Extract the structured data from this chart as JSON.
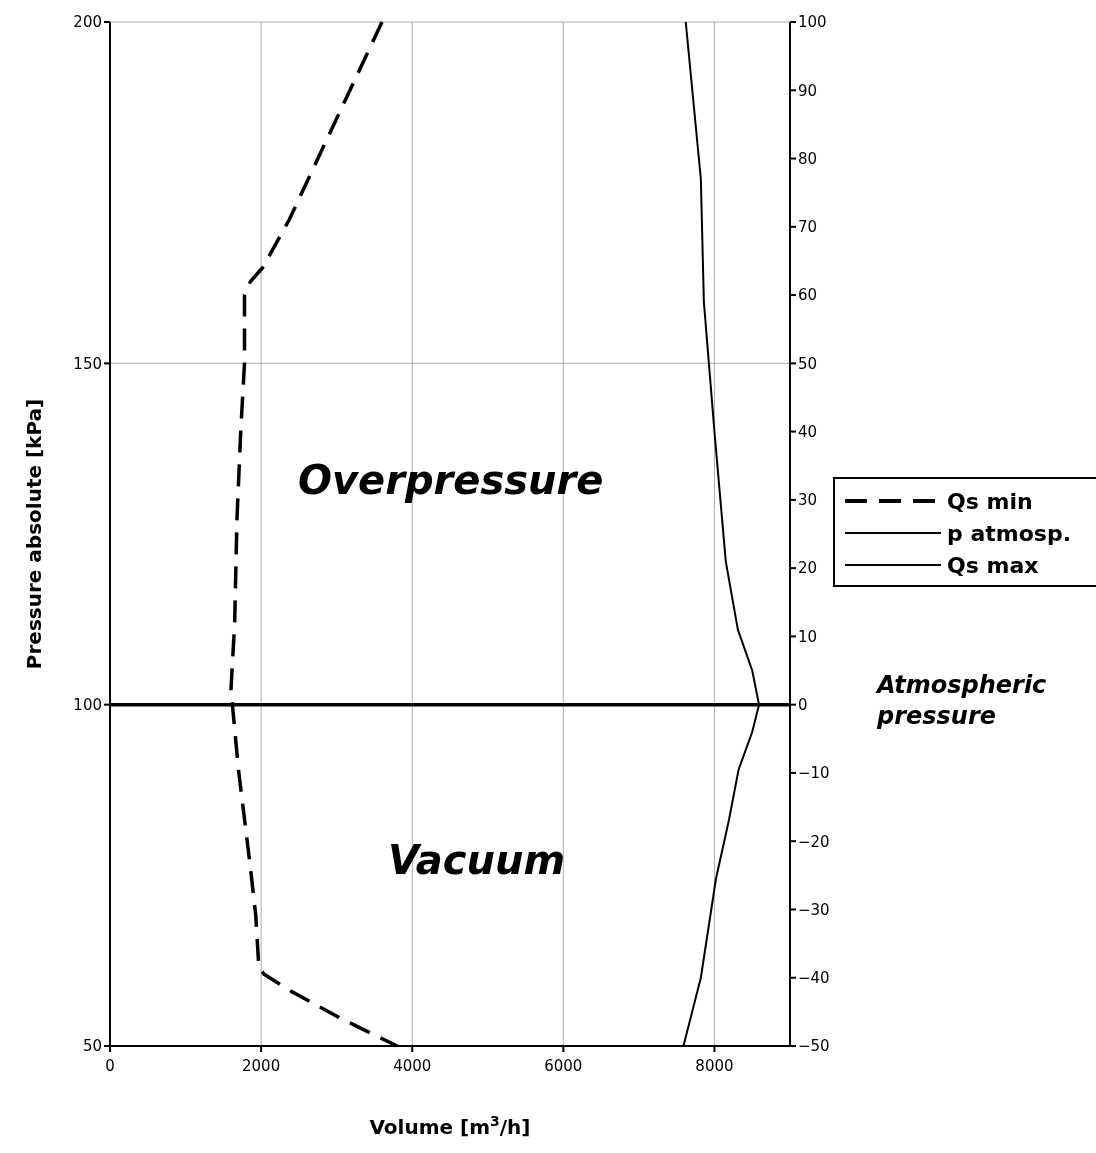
{
  "chart_data": {
    "type": "line",
    "xlabel": "Volume [m$^{3}$/h]",
    "ylabel": "Pressure absolute [kPa]",
    "xlim": [
      0,
      9000
    ],
    "xticks": [
      0,
      2000,
      4000,
      6000,
      8000
    ],
    "ylim": [
      50,
      200
    ],
    "yticks": [
      50,
      100,
      150,
      200
    ],
    "y2lim": [
      -50,
      100
    ],
    "y2ticks": [
      {
        "value": -50,
        "label": "−50"
      },
      {
        "value": -40,
        "label": "−40"
      },
      {
        "value": -30,
        "label": "−30"
      },
      {
        "value": -20,
        "label": "−20"
      },
      {
        "value": -10,
        "label": "−10"
      },
      0,
      10,
      20,
      30,
      40,
      50,
      60,
      70,
      80,
      90,
      100
    ],
    "grid": true,
    "legend": "right",
    "marker": "none",
    "series": [
      {
        "name": "Qs min",
        "color": "#000000",
        "line_style": "dashed",
        "x": [
          3600,
          2370,
          2020,
          1860,
          1780,
          1780,
          1730,
          1680,
          1650,
          1600,
          1620,
          1700,
          1860,
          1930,
          1970,
          2040,
          2400,
          3060,
          3800
        ],
        "values": [
          200,
          171,
          164,
          162,
          160,
          150,
          140,
          127,
          112,
          102,
          100,
          90.5,
          76,
          69,
          61.5,
          60.5,
          58,
          54,
          50
        ]
      },
      {
        "name": "p atmosp.",
        "color": "#000000",
        "line_style": "solid",
        "x": [
          0,
          9000
        ],
        "values": [
          100,
          100
        ]
      },
      {
        "name": "Qs max",
        "color": "#000000",
        "line_style": "solid",
        "x": [
          7620,
          7820,
          7860,
          8000,
          8150,
          8310,
          8500,
          8590,
          8500,
          8320,
          8190,
          8020,
          7820,
          7590
        ],
        "values": [
          200,
          177,
          159,
          140,
          121,
          111,
          105,
          100,
          96,
          90.5,
          83,
          74.5,
          60,
          50
        ]
      }
    ],
    "annotations": [
      "Overpressure",
      "Vacuum",
      "Atmospheric pressure"
    ]
  }
}
